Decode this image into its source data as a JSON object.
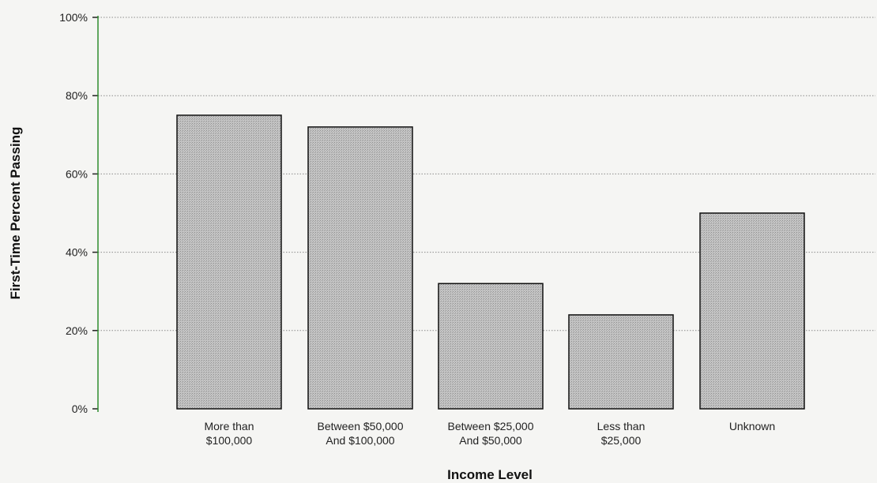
{
  "chart_data": {
    "type": "bar",
    "title": "",
    "xlabel": "Income Level",
    "ylabel": "First-Time Percent Passing",
    "categories": [
      [
        "More than",
        "$100,000"
      ],
      [
        "Between $50,000",
        "And $100,000"
      ],
      [
        "Between $25,000",
        "And $50,000"
      ],
      [
        "Less than",
        "$25,000"
      ],
      [
        "Unknown"
      ]
    ],
    "values": [
      75,
      72,
      32,
      24,
      50
    ],
    "ylim": [
      0,
      100
    ],
    "yticks": [
      0,
      20,
      40,
      60,
      80,
      100
    ],
    "ytick_labels": [
      "0%",
      "20%",
      "40%",
      "60%",
      "80%",
      "100%"
    ],
    "grid": true,
    "legend": "none",
    "colors": {
      "bar_fill": "#b9b9b9",
      "bar_stroke": "#111111",
      "grid": "#8a8a8a",
      "y_axis": "#2e8b2e",
      "background": "#f5f5f3"
    }
  }
}
